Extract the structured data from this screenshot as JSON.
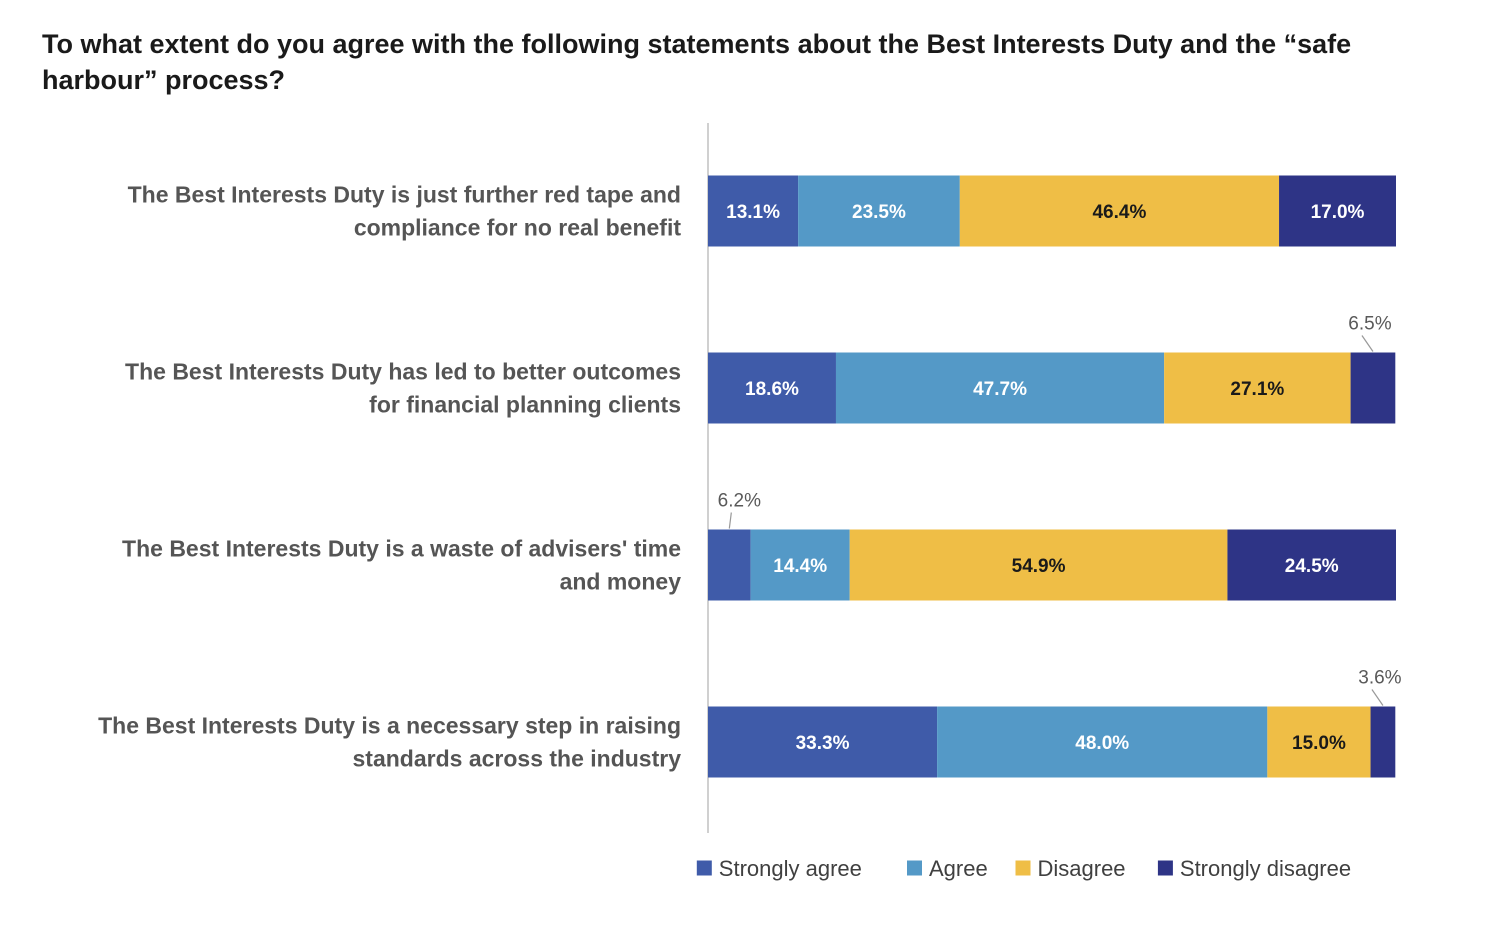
{
  "chart_data": {
    "type": "bar",
    "orientation": "horizontal",
    "stacked": true,
    "title": "To what extent do you agree with the following statements about the Best Interests Duty and the “safe harbour” process?",
    "categories": [
      [
        "The Best Interests Duty is just further red tape and",
        "compliance for no real benefit"
      ],
      [
        "The Best Interests Duty has led to better outcomes",
        "for financial planning clients"
      ],
      [
        "The Best Interests Duty is a waste of advisers' time",
        "and money"
      ],
      [
        "The Best Interests Duty is a necessary step in raising",
        "standards across the industry"
      ]
    ],
    "series": [
      {
        "name": "Strongly agree",
        "color": "#3f5ba9",
        "text_color": "#ffffff",
        "values": [
          13.1,
          18.6,
          6.2,
          33.3
        ],
        "labels": [
          "13.1%",
          "18.6%",
          "6.2%",
          "33.3%"
        ]
      },
      {
        "name": "Agree",
        "color": "#5499c7",
        "text_color": "#ffffff",
        "values": [
          23.5,
          47.7,
          14.4,
          48.0
        ],
        "labels": [
          "23.5%",
          "47.7%",
          "14.4%",
          "48.0%"
        ]
      },
      {
        "name": "Disagree",
        "color": "#efbe46",
        "text_color": "#1a1a1a",
        "values": [
          46.4,
          27.1,
          54.9,
          15.0
        ],
        "labels": [
          "46.4%",
          "27.1%",
          "54.9%",
          "15.0%"
        ]
      },
      {
        "name": "Strongly disagree",
        "color": "#2e3486",
        "text_color": "#ffffff",
        "values": [
          17.0,
          6.5,
          24.5,
          3.6
        ],
        "labels": [
          "17.0%",
          "6.5%",
          "24.5%",
          "3.6%"
        ]
      }
    ],
    "xlim": [
      0,
      100
    ],
    "xlabel": "",
    "ylabel": "",
    "grid": false,
    "legend": "bottom-right",
    "axis_color": "#d0d0d0"
  }
}
